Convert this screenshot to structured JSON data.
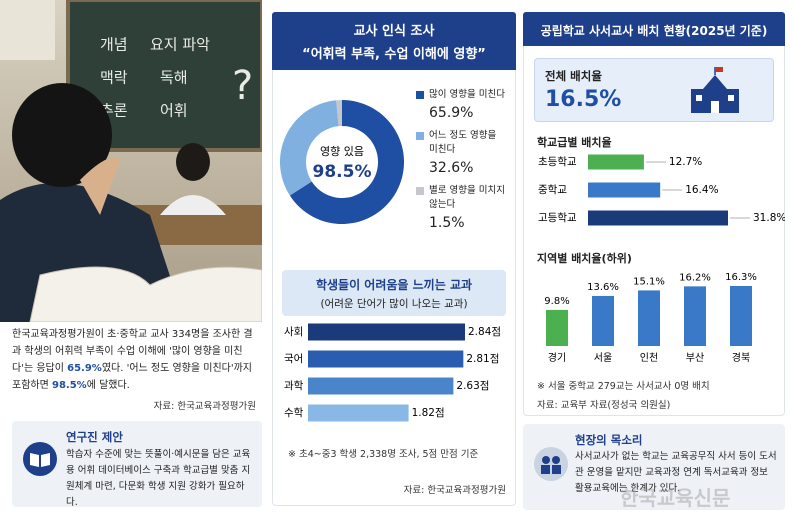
{
  "photo": {
    "board_words": [
      "개념",
      "요지 파악",
      "맥락",
      "독해",
      "추론",
      "어휘",
      "?"
    ]
  },
  "intro": {
    "segments": [
      "한국교육과정평가원이 초·중학교 교사 334명을 조사한 결과 학생의 어휘력 부족이 수업 이해에 '많이 영향을 미친다'는 응답이 ",
      "65.9%",
      "였다. '어느 정도 영향을 미친다'까지 포함하면 ",
      "98.5%",
      "에 달했다."
    ],
    "source": "자료: 한국교육과정평가원"
  },
  "proposal": {
    "title": "연구진 제안",
    "text": "학습자 수준에 맞는 뜻풀이·예시문을 담은 교육용 어휘 데이터베이스 구축과 학교급별 맞춤 지원체계 마련, 다문화 학생 지원 강화가 필요하다."
  },
  "survey": {
    "title": "교사 인식 조사",
    "subtitle": "“어휘력 부족, 수업 이해에 영향”"
  },
  "librarian": {
    "title": "공립학교 사서교사 배치 현황(2025년 기준)",
    "overall_label": "전체 배치율",
    "overall_value": "16.5%"
  },
  "field_voice": {
    "title": "현장의 목소리",
    "text": "사서교사가 없는 학교는 교육공무직 사서 등이 도서관 운영을 맡지만 교육과정 연계 독서교육과 정보 활용교육에는 한계가 있다."
  },
  "watermark": "한국교육신문",
  "chart_data": [
    {
      "type": "pie",
      "donut": true,
      "center_text": [
        "영향 있음",
        "98.5%"
      ],
      "categories": [
        "많이 영향을 미친다",
        "어느 정도 영향을 미친다",
        "별로 영향을 미치지 않는다"
      ],
      "values": [
        65.9,
        32.6,
        1.5
      ],
      "value_labels": [
        "65.9%",
        "32.6%",
        "1.5%"
      ],
      "colors": [
        "#1f4fa3",
        "#7fb0e0",
        "#c4c7cc"
      ]
    },
    {
      "type": "bar",
      "orientation": "horizontal",
      "title": "학생들이 어려움을 느끼는 교과",
      "subtitle": "(어려운 단어가 많이 나오는 교과)",
      "categories": [
        "사회",
        "국어",
        "과학",
        "수학"
      ],
      "values": [
        2.84,
        2.81,
        2.63,
        1.82
      ],
      "value_labels": [
        "2.84점",
        "2.81점",
        "2.63점",
        "1.82점"
      ],
      "colors": [
        "#1b3a7a",
        "#2a5cb0",
        "#4a85cc",
        "#8ab8e6"
      ],
      "note": "※ 초4~중3 학생 2,338명 조사, 5점 만점 기준",
      "source": "자료: 한국교육과정평가원"
    },
    {
      "type": "bar",
      "orientation": "horizontal",
      "title": "학교급별 배치율",
      "categories": [
        "초등학교",
        "중학교",
        "고등학교"
      ],
      "values": [
        12.7,
        16.4,
        31.8
      ],
      "value_labels": [
        "12.7%",
        "16.4%",
        "31.8%"
      ],
      "colors": [
        "#4caf50",
        "#3a78c8",
        "#1b3a7a"
      ]
    },
    {
      "type": "bar",
      "orientation": "vertical",
      "title": "지역별 배치율(하위)",
      "categories": [
        "경기",
        "서울",
        "인천",
        "부산",
        "경북"
      ],
      "values": [
        9.8,
        13.6,
        15.1,
        16.2,
        16.3
      ],
      "value_labels": [
        "9.8%",
        "13.6%",
        "15.1%",
        "16.2%",
        "16.3%"
      ],
      "colors": [
        "#4caf50",
        "#3a78c8",
        "#3a78c8",
        "#3a78c8",
        "#3a78c8"
      ],
      "note": "※ 서울 중학교 279교는 사서교사 0명 배치",
      "source": "자료: 교육부 자료(정성국 의원실)"
    }
  ]
}
